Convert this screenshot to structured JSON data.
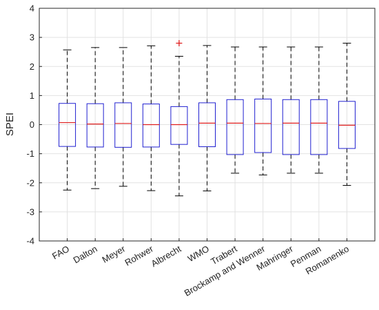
{
  "chart_data": {
    "type": "box",
    "categories": [
      "FAO",
      "Dalton",
      "Meyer",
      "Rohwer",
      "Albrecht",
      "WMO",
      "Trabert",
      "Brockamp and Wenner",
      "Mahringer",
      "Penman",
      "Romanenko"
    ],
    "series": [
      {
        "boxes": [
          {
            "whisker_low": -2.25,
            "q1": -0.75,
            "median": 0.07,
            "q3": 0.73,
            "whisker_high": 2.57,
            "outliers": []
          },
          {
            "whisker_low": -2.2,
            "q1": -0.77,
            "median": 0.02,
            "q3": 0.72,
            "whisker_high": 2.65,
            "outliers": []
          },
          {
            "whisker_low": -2.12,
            "q1": -0.78,
            "median": 0.04,
            "q3": 0.75,
            "whisker_high": 2.65,
            "outliers": []
          },
          {
            "whisker_low": -2.27,
            "q1": -0.77,
            "median": 0.0,
            "q3": 0.71,
            "whisker_high": 2.71,
            "outliers": []
          },
          {
            "whisker_low": -2.45,
            "q1": -0.68,
            "median": 0.0,
            "q3": 0.62,
            "whisker_high": 2.35,
            "outliers": [
              2.8
            ]
          },
          {
            "whisker_low": -2.28,
            "q1": -0.76,
            "median": 0.05,
            "q3": 0.75,
            "whisker_high": 2.72,
            "outliers": []
          },
          {
            "whisker_low": -1.67,
            "q1": -1.03,
            "median": 0.05,
            "q3": 0.86,
            "whisker_high": 2.67,
            "outliers": []
          },
          {
            "whisker_low": -1.73,
            "q1": -0.96,
            "median": 0.04,
            "q3": 0.88,
            "whisker_high": 2.67,
            "outliers": []
          },
          {
            "whisker_low": -1.67,
            "q1": -1.03,
            "median": 0.05,
            "q3": 0.86,
            "whisker_high": 2.67,
            "outliers": []
          },
          {
            "whisker_low": -1.67,
            "q1": -1.03,
            "median": 0.05,
            "q3": 0.86,
            "whisker_high": 2.67,
            "outliers": []
          },
          {
            "whisker_low": -2.09,
            "q1": -0.82,
            "median": -0.02,
            "q3": 0.8,
            "whisker_high": 2.8,
            "outliers": []
          }
        ]
      }
    ],
    "ylabel": "SPEI",
    "ylim": [
      -4,
      4
    ],
    "yticks": [
      "4",
      "3",
      "2",
      "1",
      "0",
      "-1",
      "-2",
      "-3",
      "-4"
    ],
    "grid": true,
    "legend": "none",
    "colors": {
      "box": "#1f1fd0",
      "median": "#e01f1f",
      "whisker": "#000000",
      "outlier": "#e01f1f",
      "grid": "#e2e2e2",
      "axis": "#262626"
    }
  }
}
